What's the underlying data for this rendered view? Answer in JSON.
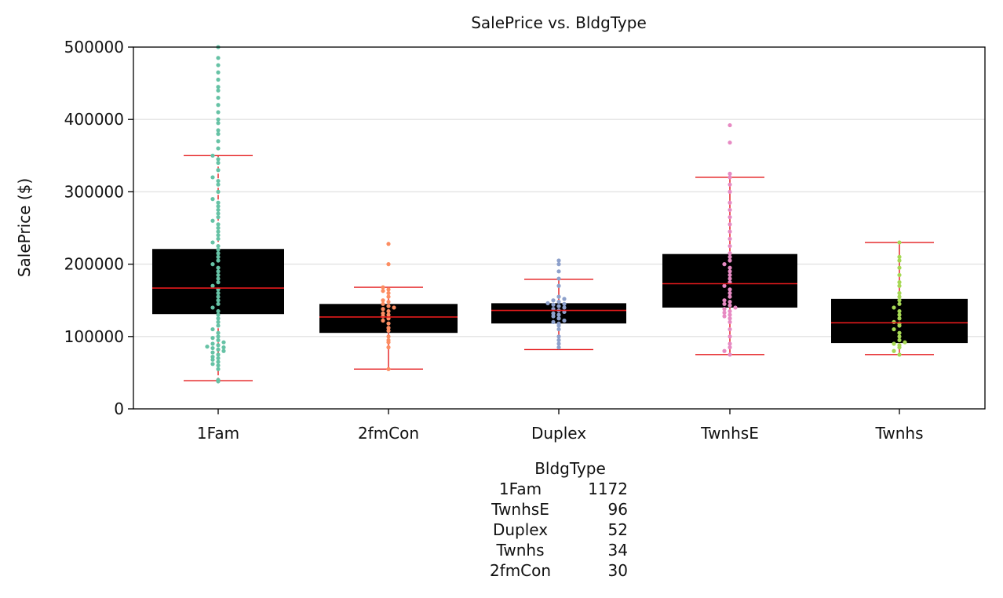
{
  "chart_data": {
    "type": "box",
    "title": "SalePrice vs. BldgType",
    "xlabel": "",
    "ylabel": "SalePrice ($)",
    "ylim": [
      0,
      500000
    ],
    "yticks": [
      "0",
      "100000",
      "200000",
      "300000",
      "400000",
      "500000"
    ],
    "grid": "horizontal",
    "categories": [
      "1Fam",
      "2fmCon",
      "Duplex",
      "TwnhsE",
      "Twnhs"
    ],
    "colors": [
      "#66c2a5",
      "#fc8d62",
      "#8da0cb",
      "#e78ac3",
      "#a6d854"
    ],
    "box_color": "#000000",
    "median_color": "#e41a1c",
    "whisker_color": "#e41a1c",
    "boxes": [
      {
        "category": "1Fam",
        "whisker_low": 39000,
        "q1": 131000,
        "median": 167000,
        "q3": 221000,
        "whisker_high": 350000
      },
      {
        "category": "2fmCon",
        "whisker_low": 55000,
        "q1": 105000,
        "median": 127000,
        "q3": 145000,
        "whisker_high": 168000
      },
      {
        "category": "Duplex",
        "whisker_low": 82000,
        "q1": 118000,
        "median": 136000,
        "q3": 146000,
        "whisker_high": 179000
      },
      {
        "category": "TwnhsE",
        "whisker_low": 75000,
        "q1": 140000,
        "median": 173000,
        "q3": 214000,
        "whisker_high": 320000
      },
      {
        "category": "Twnhs",
        "whisker_low": 75000,
        "q1": 91000,
        "median": 119000,
        "q3": 152000,
        "whisker_high": 230000
      }
    ],
    "points": {
      "1Fam": [
        38000,
        40000,
        55000,
        60000,
        62000,
        65000,
        68000,
        70000,
        72000,
        75000,
        78000,
        80000,
        82000,
        84000,
        85000,
        86000,
        88000,
        90000,
        92000,
        95000,
        98000,
        100000,
        105000,
        110000,
        115000,
        120000,
        125000,
        130000,
        135000,
        140000,
        145000,
        150000,
        155000,
        160000,
        165000,
        170000,
        175000,
        180000,
        185000,
        190000,
        195000,
        200000,
        205000,
        210000,
        215000,
        220000,
        225000,
        230000,
        235000,
        240000,
        245000,
        250000,
        255000,
        260000,
        265000,
        270000,
        275000,
        280000,
        285000,
        290000,
        300000,
        310000,
        315000,
        320000,
        330000,
        340000,
        345000,
        350000,
        360000,
        370000,
        380000,
        385000,
        395000,
        400000,
        410000,
        420000,
        430000,
        440000,
        445000,
        455000,
        465000,
        475000,
        485000,
        500000
      ],
      "2fmCon": [
        55000,
        85000,
        92000,
        95000,
        100000,
        108000,
        112000,
        118000,
        122000,
        125000,
        128000,
        130000,
        132000,
        135000,
        138000,
        140000,
        142000,
        145000,
        148000,
        150000,
        155000,
        160000,
        163000,
        165000,
        168000,
        200000,
        228000
      ],
      "Duplex": [
        85000,
        90000,
        95000,
        100000,
        110000,
        115000,
        118000,
        120000,
        122000,
        125000,
        128000,
        130000,
        132000,
        134000,
        136000,
        138000,
        140000,
        142000,
        144000,
        145000,
        146000,
        148000,
        150000,
        152000,
        155000,
        170000,
        180000,
        190000,
        200000,
        205000
      ],
      "TwnhsE": [
        75000,
        80000,
        85000,
        90000,
        100000,
        110000,
        120000,
        125000,
        128000,
        130000,
        133000,
        135000,
        138000,
        140000,
        143000,
        145000,
        148000,
        150000,
        155000,
        160000,
        165000,
        170000,
        175000,
        180000,
        185000,
        190000,
        195000,
        200000,
        205000,
        210000,
        215000,
        225000,
        235000,
        245000,
        255000,
        265000,
        275000,
        285000,
        300000,
        310000,
        320000,
        325000,
        368000,
        392000
      ],
      "Twnhs": [
        75000,
        80000,
        85000,
        88000,
        90000,
        92000,
        95000,
        100000,
        105000,
        110000,
        115000,
        118000,
        120000,
        125000,
        130000,
        135000,
        140000,
        145000,
        150000,
        155000,
        160000,
        170000,
        175000,
        185000,
        195000,
        205000,
        210000,
        230000
      ]
    },
    "annotation": {
      "header": "BldgType",
      "rows": [
        {
          "category": "1Fam",
          "count": "1172"
        },
        {
          "category": "TwnhsE",
          "count": "96"
        },
        {
          "category": "Duplex",
          "count": "52"
        },
        {
          "category": "Twnhs",
          "count": "34"
        },
        {
          "category": "2fmCon",
          "count": "30"
        }
      ]
    }
  }
}
